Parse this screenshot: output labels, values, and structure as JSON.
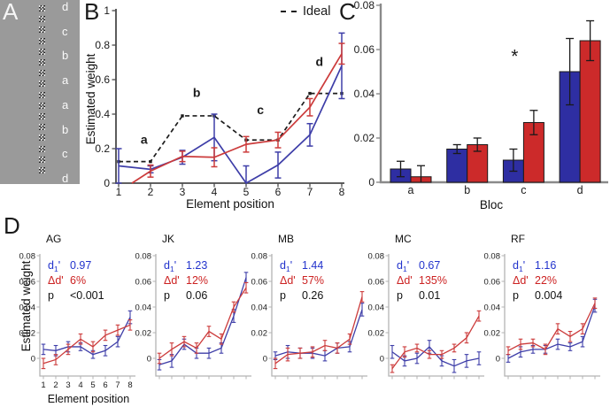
{
  "panels": {
    "A": {
      "label": "A",
      "background": "#9a9a9a",
      "n_elements": 16,
      "element_labels": [
        "d",
        "c",
        "b",
        "a",
        "a",
        "b",
        "c",
        "d"
      ]
    },
    "B": {
      "label": "B"
    },
    "C": {
      "label": "C"
    },
    "D": {
      "label": "D"
    }
  },
  "colors": {
    "line_blue": "#3e3ea8",
    "line_red": "#cc3b3b",
    "bar_blue": "#2e2ea2",
    "bar_red": "#cc2a2a",
    "ideal_black": "#1c1c1c",
    "text_blue": "#2233cc",
    "text_red": "#cc2222"
  },
  "chart_data": [
    {
      "id": "B",
      "type": "line",
      "xlabel": "Element position",
      "ylabel": "Estimated weight",
      "x": [
        1,
        2,
        3,
        4,
        5,
        6,
        7,
        8
      ],
      "xticklabels": [
        "1",
        "2",
        "3",
        "4",
        "5",
        "6",
        "7",
        "8"
      ],
      "xlim": [
        1,
        8
      ],
      "ylim": [
        0,
        1
      ],
      "yticks": [
        0,
        0.2,
        0.4,
        0.6,
        0.8,
        1
      ],
      "yticklabels": [
        "0",
        "0.2",
        "0.4",
        "0.6",
        "0.8",
        "1"
      ],
      "grid": false,
      "legend": {
        "label": "Ideal",
        "style": "dashed",
        "position": "top-right"
      },
      "series": [
        {
          "name": "ideal",
          "style": "dashed",
          "color": "#1c1c1c",
          "values": [
            0.125,
            0.125,
            0.39,
            0.39,
            0.25,
            0.25,
            0.52,
            0.52
          ]
        },
        {
          "name": "blue",
          "style": "solid",
          "color": "#3e3ea8",
          "values": [
            0.1,
            0.08,
            0.15,
            0.265,
            0.0,
            0.105,
            0.28,
            0.68
          ],
          "errors": [
            0.1,
            0.02,
            0.04,
            0.135,
            0.1,
            0.075,
            0.065,
            0.19
          ]
        },
        {
          "name": "red",
          "style": "solid",
          "color": "#cc3b3b",
          "values": [
            -0.05,
            0.07,
            0.155,
            0.15,
            0.225,
            0.25,
            0.44,
            0.75
          ],
          "errors": [
            0,
            0.035,
            0.03,
            0.055,
            0.045,
            0.045,
            0.05,
            0.06
          ]
        }
      ],
      "annotations": [
        {
          "text": "a",
          "x": 1.8,
          "y": 0.25
        },
        {
          "text": "b",
          "x": 3.45,
          "y": 0.52
        },
        {
          "text": "c",
          "x": 5.45,
          "y": 0.42
        },
        {
          "text": "d",
          "x": 7.3,
          "y": 0.7
        }
      ]
    },
    {
      "id": "C",
      "type": "bar",
      "xlabel": "Bloc",
      "categories": [
        "a",
        "b",
        "c",
        "d"
      ],
      "ylim": [
        0,
        0.08
      ],
      "yticks": [
        0,
        0.02,
        0.04,
        0.06,
        0.08
      ],
      "yticklabels": [
        "0",
        "0.02",
        "0.04",
        "0.06",
        "0.08"
      ],
      "grid": false,
      "series": [
        {
          "name": "blue",
          "color": "#2e2ea2",
          "values": [
            0.006,
            0.015,
            0.01,
            0.05
          ],
          "errors": [
            0.0035,
            0.002,
            0.005,
            0.015
          ]
        },
        {
          "name": "red",
          "color": "#cc2a2a",
          "values": [
            0.0025,
            0.017,
            0.027,
            0.064
          ],
          "errors": [
            0.005,
            0.003,
            0.0055,
            0.009
          ]
        }
      ],
      "annotations": [
        {
          "text": "*",
          "category": "c",
          "y": 0.057
        }
      ]
    },
    {
      "id": "D",
      "type": "small-multiples-line",
      "xlabel": "Element position",
      "ylabel": "Estimated weight",
      "x": [
        1,
        2,
        3,
        4,
        5,
        6,
        7,
        8
      ],
      "xticklabels": [
        "1",
        "2",
        "3",
        "4",
        "5",
        "6",
        "7",
        "8"
      ],
      "ylim": [
        -0.013,
        0.08
      ],
      "yticks": [
        0,
        0.02,
        0.04,
        0.06,
        0.08
      ],
      "yticklabels": [
        "0",
        "0.02",
        "0.04",
        "0.06",
        "0.08"
      ],
      "subplots": [
        {
          "title": "AG",
          "stats": [
            {
              "label": "d1'",
              "value": "0.97",
              "color": "#2233cc"
            },
            {
              "label": "Δd'",
              "value": "6%",
              "color": "#cc2222"
            },
            {
              "label": "p",
              "value": "<0.001",
              "color": "#111111"
            }
          ],
          "series": [
            {
              "name": "blue",
              "color": "#3e3ea8",
              "values": [
                0.007,
                0.006,
                0.009,
                0.009,
                0.003,
                0.006,
                0.013,
                0.032
              ],
              "errors": [
                0.004,
                0.004,
                0.004,
                0.003,
                0.003,
                0.004,
                0.004,
                0.005
              ]
            },
            {
              "name": "red",
              "color": "#cc3b3b",
              "values": [
                -0.004,
                -0.001,
                0.007,
                0.015,
                0.009,
                0.018,
                0.022,
                0.026
              ],
              "errors": [
                0.004,
                0.004,
                0.004,
                0.004,
                0.004,
                0.004,
                0.004,
                0.004
              ]
            }
          ]
        },
        {
          "title": "JK",
          "stats": [
            {
              "label": "d1'",
              "value": "1.23",
              "color": "#2233cc"
            },
            {
              "label": "Δd'",
              "value": "12%",
              "color": "#cc2222"
            },
            {
              "label": "p",
              "value": "0.06",
              "color": "#111111"
            }
          ],
          "series": [
            {
              "name": "blue",
              "color": "#3e3ea8",
              "values": [
                -0.005,
                -0.002,
                0.011,
                0.004,
                0.004,
                0.008,
                0.033,
                0.063
              ],
              "errors": [
                0.004,
                0.005,
                0.004,
                0.004,
                0.004,
                0.004,
                0.005,
                0.004
              ]
            },
            {
              "name": "red",
              "color": "#cc3b3b",
              "values": [
                0.0,
                0.007,
                0.013,
                0.008,
                0.021,
                0.015,
                0.04,
                0.055
              ],
              "errors": [
                0.004,
                0.005,
                0.004,
                0.004,
                0.004,
                0.004,
                0.004,
                0.004
              ]
            }
          ]
        },
        {
          "title": "MB",
          "stats": [
            {
              "label": "d1'",
              "value": "1.44",
              "color": "#2233cc"
            },
            {
              "label": "Δd'",
              "value": "57%",
              "color": "#cc2222"
            },
            {
              "label": "p",
              "value": "0.26",
              "color": "#111111"
            }
          ],
          "series": [
            {
              "name": "blue",
              "color": "#3e3ea8",
              "values": [
                0.002,
                0.005,
                0.004,
                0.004,
                0.002,
                0.008,
                0.009,
                0.038
              ],
              "errors": [
                0.003,
                0.005,
                0.004,
                0.004,
                0.004,
                0.004,
                0.004,
                0.005
              ]
            },
            {
              "name": "red",
              "color": "#cc3b3b",
              "values": [
                -0.004,
                0.003,
                0.004,
                0.005,
                0.01,
                0.008,
                0.015,
                0.048
              ],
              "errors": [
                0.004,
                0.005,
                0.004,
                0.004,
                0.004,
                0.004,
                0.004,
                0.004
              ]
            }
          ]
        },
        {
          "title": "MC",
          "stats": [
            {
              "label": "d1'",
              "value": "0.67",
              "color": "#2233cc"
            },
            {
              "label": "Δd'",
              "value": "135%",
              "color": "#cc2222"
            },
            {
              "label": "p",
              "value": "0.01",
              "color": "#111111"
            }
          ],
          "series": [
            {
              "name": "blue",
              "color": "#3e3ea8",
              "values": [
                0.005,
                -0.002,
                0.0,
                0.009,
                -0.002,
                -0.006,
                -0.002,
                0.0
              ],
              "errors": [
                0.005,
                0.004,
                0.004,
                0.005,
                0.004,
                0.005,
                0.005,
                0.005
              ]
            },
            {
              "name": "red",
              "color": "#cc3b3b",
              "values": [
                -0.008,
                0.005,
                0.008,
                0.003,
                0.003,
                0.008,
                0.016,
                0.033
              ],
              "errors": [
                0.003,
                0.004,
                0.003,
                0.003,
                0.003,
                0.003,
                0.004,
                0.004
              ]
            }
          ]
        },
        {
          "title": "RF",
          "stats": [
            {
              "label": "d1'",
              "value": "1.16",
              "color": "#2233cc"
            },
            {
              "label": "Δd'",
              "value": "22%",
              "color": "#cc2222"
            },
            {
              "label": "p",
              "value": "0.004",
              "color": "#111111"
            }
          ],
          "series": [
            {
              "name": "blue",
              "color": "#3e3ea8",
              "values": [
                0.0,
                0.005,
                0.007,
                0.007,
                0.011,
                0.009,
                0.013,
                0.041
              ],
              "errors": [
                0.003,
                0.004,
                0.003,
                0.003,
                0.004,
                0.003,
                0.004,
                0.005
              ]
            },
            {
              "name": "red",
              "color": "#cc3b3b",
              "values": [
                0.006,
                0.011,
                0.012,
                0.007,
                0.023,
                0.017,
                0.023,
                0.043
              ],
              "errors": [
                0.003,
                0.004,
                0.003,
                0.004,
                0.004,
                0.004,
                0.004,
                0.004
              ]
            }
          ]
        }
      ]
    }
  ]
}
